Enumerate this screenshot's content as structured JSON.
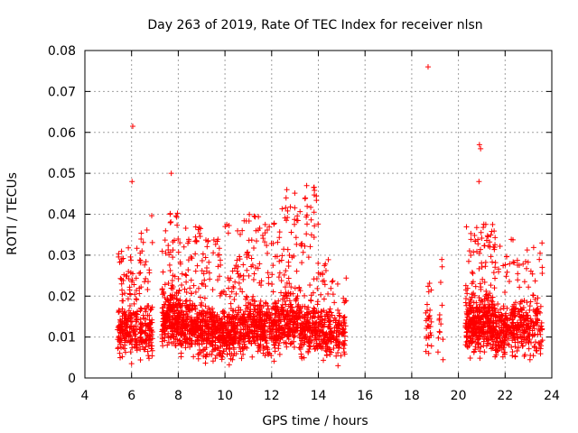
{
  "chart_data": {
    "type": "scatter",
    "title": "Day 263 of 2019, Rate Of TEC Index for receiver nlsn",
    "xlabel": "GPS time / hours",
    "ylabel": "ROTI / TECUs",
    "xlim": [
      4,
      24
    ],
    "ylim": [
      0,
      0.08
    ],
    "xticks": [
      "4",
      "6",
      "8",
      "10",
      "12",
      "14",
      "16",
      "18",
      "20",
      "22",
      "24"
    ],
    "yticks": [
      "0",
      "0.01",
      "0.02",
      "0.03",
      "0.04",
      "0.05",
      "0.06",
      "0.07",
      "0.08"
    ],
    "grid": true,
    "marker": "+",
    "color": "#ff0000",
    "clusters": [
      {
        "x_range": [
          5.4,
          5.75
        ],
        "n": 90,
        "y_median": 0.012,
        "y_max": 0.031
      },
      {
        "x_range": [
          5.75,
          6.25
        ],
        "n": 110,
        "y_median": 0.013,
        "y_max": 0.032
      },
      {
        "x_range": [
          6.3,
          6.9
        ],
        "n": 130,
        "y_median": 0.011,
        "y_max": 0.04
      },
      {
        "x_range": [
          7.3,
          8.1
        ],
        "n": 260,
        "y_median": 0.014,
        "y_max": 0.041
      },
      {
        "x_range": [
          8.1,
          9.0
        ],
        "n": 250,
        "y_median": 0.012,
        "y_max": 0.037
      },
      {
        "x_range": [
          9.0,
          9.9
        ],
        "n": 240,
        "y_median": 0.011,
        "y_max": 0.034
      },
      {
        "x_range": [
          9.9,
          10.8
        ],
        "n": 240,
        "y_median": 0.011,
        "y_max": 0.038
      },
      {
        "x_range": [
          10.8,
          11.6
        ],
        "n": 220,
        "y_median": 0.013,
        "y_max": 0.04
      },
      {
        "x_range": [
          11.6,
          12.4
        ],
        "n": 200,
        "y_median": 0.012,
        "y_max": 0.038
      },
      {
        "x_range": [
          12.4,
          13.2
        ],
        "n": 210,
        "y_median": 0.014,
        "y_max": 0.046
      },
      {
        "x_range": [
          13.2,
          14.0
        ],
        "n": 200,
        "y_median": 0.012,
        "y_max": 0.047
      },
      {
        "x_range": [
          14.0,
          14.6
        ],
        "n": 130,
        "y_median": 0.011,
        "y_max": 0.029
      },
      {
        "x_range": [
          14.6,
          15.2
        ],
        "n": 90,
        "y_median": 0.011,
        "y_max": 0.025
      },
      {
        "x_range": [
          18.6,
          18.85
        ],
        "n": 30,
        "y_median": 0.012,
        "y_max": 0.028
      },
      {
        "x_range": [
          19.1,
          19.35
        ],
        "n": 14,
        "y_median": 0.011,
        "y_max": 0.033
      },
      {
        "x_range": [
          20.3,
          21.0
        ],
        "n": 230,
        "y_median": 0.012,
        "y_max": 0.037
      },
      {
        "x_range": [
          21.0,
          21.6
        ],
        "n": 200,
        "y_median": 0.013,
        "y_max": 0.038
      },
      {
        "x_range": [
          21.6,
          22.2
        ],
        "n": 130,
        "y_median": 0.011,
        "y_max": 0.033
      },
      {
        "x_range": [
          22.2,
          22.8
        ],
        "n": 130,
        "y_median": 0.012,
        "y_max": 0.034
      },
      {
        "x_range": [
          22.8,
          23.6
        ],
        "n": 130,
        "y_median": 0.012,
        "y_max": 0.033
      }
    ],
    "notable_points": [
      {
        "x": 6.05,
        "y": 0.0615
      },
      {
        "x": 6.02,
        "y": 0.048
      },
      {
        "x": 7.7,
        "y": 0.05
      },
      {
        "x": 12.65,
        "y": 0.046
      },
      {
        "x": 13.5,
        "y": 0.047
      },
      {
        "x": 18.7,
        "y": 0.076
      },
      {
        "x": 20.9,
        "y": 0.057
      },
      {
        "x": 20.95,
        "y": 0.056
      },
      {
        "x": 20.88,
        "y": 0.048
      },
      {
        "x": 6.0,
        "y": 0.0035
      }
    ]
  }
}
